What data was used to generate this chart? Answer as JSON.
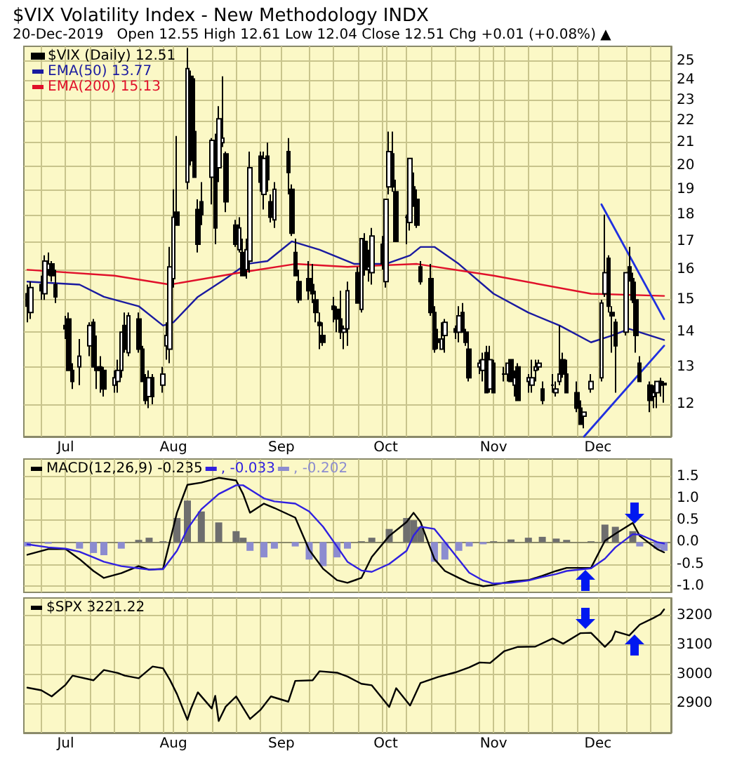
{
  "chart_data": [
    {
      "type": "candlestick",
      "title": "$VIX Volatility Index - New Methodology INDX",
      "subtitle": "20-Dec-2019   Open 12.55 High 12.61 Low 12.04 Close 12.51 Chg +0.01 (+0.08%) ▲",
      "log": "y",
      "grid": true,
      "legend": "top left",
      "xlim": [
        "2019-06-19",
        "2019-12-22"
      ],
      "xticks": [
        {
          "value": "2019-06-24",
          "label": null
        },
        {
          "value": "2019-07-01",
          "label": "Jul"
        },
        {
          "value": "2019-07-08",
          "label": null
        },
        {
          "value": "2019-07-15",
          "label": null
        },
        {
          "value": "2019-07-22",
          "label": null
        },
        {
          "value": "2019-07-29",
          "label": null
        },
        {
          "value": "2019-08-01",
          "label": "Aug"
        },
        {
          "value": "2019-08-05",
          "label": null
        },
        {
          "value": "2019-08-12",
          "label": null
        },
        {
          "value": "2019-08-19",
          "label": null
        },
        {
          "value": "2019-08-26",
          "label": null
        },
        {
          "value": "2019-09-01",
          "label": "Sep"
        },
        {
          "value": "2019-09-09",
          "label": null
        },
        {
          "value": "2019-09-16",
          "label": null
        },
        {
          "value": "2019-09-23",
          "label": null
        },
        {
          "value": "2019-09-30",
          "label": null
        },
        {
          "value": "2019-10-01",
          "label": "Oct"
        },
        {
          "value": "2019-10-07",
          "label": null
        },
        {
          "value": "2019-10-14",
          "label": null
        },
        {
          "value": "2019-10-21",
          "label": null
        },
        {
          "value": "2019-10-28",
          "label": null
        },
        {
          "value": "2019-11-01",
          "label": "Nov"
        },
        {
          "value": "2019-11-04",
          "label": null
        },
        {
          "value": "2019-11-11",
          "label": null
        },
        {
          "value": "2019-11-18",
          "label": null
        },
        {
          "value": "2019-11-25",
          "label": null
        },
        {
          "value": "2019-12-01",
          "label": "Dec"
        },
        {
          "value": "2019-12-09",
          "label": null
        },
        {
          "value": "2019-12-16",
          "label": null
        }
      ],
      "ylim": [
        11.2,
        25.8
      ],
      "yticks": [
        12,
        13,
        14,
        15,
        16,
        17,
        18,
        19,
        20,
        21,
        22,
        23,
        24,
        25
      ],
      "series": [
        {
          "type": "candlestick",
          "name": "$VIX (Daily) 12.51",
          "color": "#000000",
          "x": [
            "2019-06-20",
            "2019-06-21",
            "2019-06-24",
            "2019-06-25",
            "2019-06-26",
            "2019-06-27",
            "2019-06-28",
            "2019-07-01",
            "2019-07-02",
            "2019-07-03",
            "2019-07-05",
            "2019-07-08",
            "2019-07-09",
            "2019-07-10",
            "2019-07-11",
            "2019-07-12",
            "2019-07-15",
            "2019-07-16",
            "2019-07-17",
            "2019-07-18",
            "2019-07-19",
            "2019-07-22",
            "2019-07-23",
            "2019-07-24",
            "2019-07-25",
            "2019-07-26",
            "2019-07-29",
            "2019-07-30",
            "2019-07-31",
            "2019-08-01",
            "2019-08-02",
            "2019-08-05",
            "2019-08-06",
            "2019-08-07",
            "2019-08-08",
            "2019-08-09",
            "2019-08-12",
            "2019-08-13",
            "2019-08-14",
            "2019-08-15",
            "2019-08-16",
            "2019-08-19",
            "2019-08-20",
            "2019-08-21",
            "2019-08-22",
            "2019-08-23",
            "2019-08-26",
            "2019-08-27",
            "2019-08-28",
            "2019-08-29",
            "2019-08-30",
            "2019-09-03",
            "2019-09-04",
            "2019-09-05",
            "2019-09-06",
            "2019-09-09",
            "2019-09-10",
            "2019-09-11",
            "2019-09-12",
            "2019-09-13",
            "2019-09-16",
            "2019-09-17",
            "2019-09-18",
            "2019-09-19",
            "2019-09-20",
            "2019-09-23",
            "2019-09-24",
            "2019-09-25",
            "2019-09-26",
            "2019-09-27",
            "2019-09-30",
            "2019-10-01",
            "2019-10-02",
            "2019-10-03",
            "2019-10-04",
            "2019-10-07",
            "2019-10-08",
            "2019-10-09",
            "2019-10-10",
            "2019-10-11",
            "2019-10-14",
            "2019-10-15",
            "2019-10-16",
            "2019-10-17",
            "2019-10-18",
            "2019-10-21",
            "2019-10-22",
            "2019-10-23",
            "2019-10-24",
            "2019-10-25",
            "2019-10-28",
            "2019-10-29",
            "2019-10-30",
            "2019-10-31",
            "2019-11-01",
            "2019-11-04",
            "2019-11-05",
            "2019-11-06",
            "2019-11-07",
            "2019-11-08",
            "2019-11-11",
            "2019-11-12",
            "2019-11-13",
            "2019-11-14",
            "2019-11-15",
            "2019-11-18",
            "2019-11-19",
            "2019-11-20",
            "2019-11-21",
            "2019-11-22",
            "2019-11-25",
            "2019-11-26",
            "2019-11-27",
            "2019-11-29",
            "2019-12-02",
            "2019-12-03",
            "2019-12-04",
            "2019-12-05",
            "2019-12-06",
            "2019-12-09",
            "2019-12-10",
            "2019-12-11",
            "2019-12-12",
            "2019-12-13",
            "2019-12-16",
            "2019-12-17",
            "2019-12-18",
            "2019-12-19",
            "2019-12-20"
          ],
          "ohlc": [
            [
              15.2,
              15.5,
              14.3,
              14.8
            ],
            [
              14.6,
              15.6,
              14.4,
              15.4
            ],
            [
              15.5,
              15.8,
              15.0,
              15.3
            ],
            [
              15.2,
              16.5,
              15.0,
              16.3
            ],
            [
              16.0,
              16.6,
              15.8,
              16.2
            ],
            [
              16.2,
              16.3,
              15.6,
              15.8
            ],
            [
              15.5,
              16.0,
              14.9,
              15.1
            ],
            [
              14.2,
              14.5,
              13.8,
              14.1
            ],
            [
              14.4,
              14.6,
              12.9,
              12.9
            ],
            [
              12.9,
              13.1,
              12.4,
              12.6
            ],
            [
              13.0,
              13.8,
              12.5,
              13.3
            ],
            [
              13.6,
              14.3,
              13.3,
              14.2
            ],
            [
              14.3,
              14.4,
              13.0,
              13.0
            ],
            [
              13.0,
              13.9,
              12.4,
              12.9
            ],
            [
              13.0,
              13.3,
              12.3,
              12.9
            ],
            [
              12.9,
              13.0,
              12.2,
              12.4
            ],
            [
              12.5,
              12.9,
              12.3,
              12.7
            ],
            [
              12.6,
              13.2,
              12.3,
              12.9
            ],
            [
              12.9,
              14.0,
              12.7,
              14.0
            ],
            [
              14.2,
              14.6,
              13.4,
              13.5
            ],
            [
              13.4,
              14.6,
              13.3,
              14.5
            ],
            [
              14.4,
              14.6,
              13.4,
              13.5
            ],
            [
              13.5,
              13.6,
              12.6,
              12.6
            ],
            [
              12.7,
              12.8,
              12.0,
              12.1
            ],
            [
              12.2,
              12.9,
              11.9,
              12.7
            ],
            [
              12.7,
              12.8,
              12.0,
              12.2
            ],
            [
              12.5,
              13.0,
              12.3,
              12.8
            ],
            [
              13.6,
              14.3,
              13.2,
              13.9
            ],
            [
              13.5,
              16.8,
              13.1,
              16.1
            ],
            [
              15.7,
              19.0,
              15.4,
              17.9
            ],
            [
              18.1,
              21.3,
              17.6,
              17.6
            ],
            [
              19.3,
              25.7,
              19.0,
              24.6
            ],
            [
              24.2,
              24.5,
              20.0,
              20.2
            ],
            [
              21.5,
              24.1,
              19.5,
              19.5
            ],
            [
              18.2,
              18.6,
              16.6,
              16.9
            ],
            [
              18.5,
              19.3,
              17.6,
              18.0
            ],
            [
              19.5,
              21.2,
              18.4,
              21.1
            ],
            [
              21.1,
              21.4,
              16.9,
              17.5
            ],
            [
              19.9,
              22.7,
              19.3,
              22.1
            ],
            [
              21.0,
              24.2,
              20.8,
              21.2
            ],
            [
              20.5,
              20.6,
              18.1,
              18.5
            ],
            [
              17.6,
              17.8,
              16.8,
              16.9
            ],
            [
              16.7,
              17.9,
              16.6,
              17.5
            ],
            [
              16.6,
              17.1,
              15.8,
              15.8
            ],
            [
              16.0,
              17.1,
              15.7,
              16.7
            ],
            [
              16.3,
              20.6,
              15.9,
              19.9
            ],
            [
              20.4,
              20.6,
              18.9,
              19.3
            ],
            [
              18.8,
              20.6,
              18.2,
              20.3
            ],
            [
              20.4,
              21.0,
              18.9,
              19.4
            ],
            [
              18.5,
              18.8,
              17.7,
              17.9
            ],
            [
              17.8,
              19.3,
              17.5,
              19.0
            ],
            [
              20.6,
              21.2,
              18.8,
              19.7
            ],
            [
              19.0,
              19.2,
              17.2,
              17.3
            ],
            [
              16.6,
              17.1,
              15.8,
              15.8
            ],
            [
              15.6,
              16.0,
              14.9,
              15.0
            ],
            [
              15.7,
              16.3,
              15.0,
              15.3
            ],
            [
              15.5,
              16.2,
              14.9,
              15.2
            ],
            [
              15.0,
              15.3,
              14.3,
              14.6
            ],
            [
              14.3,
              14.6,
              13.5,
              14.2
            ],
            [
              13.9,
              14.3,
              13.6,
              13.7
            ],
            [
              14.8,
              15.1,
              14.3,
              14.7
            ],
            [
              14.7,
              14.8,
              14.0,
              14.4
            ],
            [
              14.4,
              15.3,
              13.8,
              14.0
            ],
            [
              14.0,
              14.2,
              13.5,
              14.1
            ],
            [
              14.1,
              15.6,
              13.6,
              15.3
            ],
            [
              15.9,
              16.1,
              14.9,
              14.9
            ],
            [
              14.7,
              17.1,
              14.6,
              17.1
            ],
            [
              17.0,
              17.3,
              15.8,
              16.0
            ],
            [
              16.0,
              16.7,
              15.6,
              16.1
            ],
            [
              15.9,
              17.5,
              15.5,
              17.2
            ],
            [
              16.9,
              17.2,
              16.0,
              16.2
            ],
            [
              15.6,
              18.6,
              15.4,
              18.6
            ],
            [
              19.1,
              21.5,
              18.8,
              20.6
            ],
            [
              20.5,
              21.5,
              18.9,
              19.1
            ],
            [
              18.9,
              19.4,
              17.0,
              17.0
            ],
            [
              17.9,
              18.0,
              16.9,
              17.9
            ],
            [
              17.7,
              20.3,
              17.4,
              20.3
            ],
            [
              19.1,
              19.7,
              18.3,
              18.6
            ],
            [
              18.6,
              19.0,
              17.5,
              17.6
            ],
            [
              16.1,
              16.3,
              15.5,
              15.6
            ],
            [
              15.7,
              16.2,
              14.5,
              14.6
            ],
            [
              14.6,
              14.8,
              13.4,
              13.5
            ],
            [
              13.8,
              14.1,
              13.5,
              13.7
            ],
            [
              13.5,
              14.3,
              13.5,
              13.8
            ],
            [
              13.9,
              14.4,
              13.4,
              14.3
            ],
            [
              14.1,
              14.2,
              13.8,
              14.0
            ],
            [
              14.0,
              14.8,
              13.7,
              14.5
            ],
            [
              14.6,
              14.9,
              14.0,
              14.0
            ],
            [
              14.0,
              14.1,
              13.6,
              13.7
            ],
            [
              13.5,
              13.8,
              12.6,
              12.7
            ],
            [
              13.0,
              13.2,
              12.8,
              13.1
            ],
            [
              12.9,
              13.4,
              12.6,
              13.2
            ],
            [
              13.4,
              13.6,
              12.3,
              12.3
            ],
            [
              12.4,
              13.6,
              12.3,
              13.2
            ],
            [
              13.1,
              13.2,
              12.3,
              12.3
            ],
            [
              12.8,
              13.0,
              12.6,
              12.8
            ],
            [
              12.8,
              13.1,
              12.6,
              13.1
            ],
            [
              13.2,
              13.2,
              12.6,
              12.6
            ],
            [
              12.5,
              12.9,
              12.2,
              12.7
            ],
            [
              13.0,
              13.1,
              12.1,
              12.1
            ],
            [
              12.6,
              12.8,
              12.3,
              12.7
            ],
            [
              12.5,
              13.2,
              12.3,
              12.7
            ],
            [
              12.9,
              13.2,
              12.6,
              13.0
            ],
            [
              13.0,
              13.2,
              12.9,
              13.1
            ],
            [
              12.4,
              12.6,
              12.0,
              12.1
            ],
            [
              12.5,
              12.8,
              12.3,
              12.5
            ],
            [
              12.3,
              12.6,
              12.2,
              12.4
            ],
            [
              12.6,
              14.2,
              12.5,
              12.8
            ],
            [
              13.2,
              13.4,
              12.7,
              12.8
            ],
            [
              12.8,
              13.2,
              12.3,
              12.3
            ],
            [
              12.3,
              12.6,
              11.8,
              11.9
            ],
            [
              11.9,
              12.1,
              11.5,
              11.5
            ],
            [
              11.7,
              11.8,
              11.4,
              11.8
            ],
            [
              12.4,
              12.8,
              12.3,
              12.6
            ],
            [
              12.7,
              15.0,
              12.6,
              14.9
            ],
            [
              15.2,
              18.0,
              15.1,
              15.9
            ],
            [
              16.4,
              16.5,
              14.6,
              14.8
            ],
            [
              14.6,
              14.8,
              13.4,
              14.5
            ],
            [
              14.3,
              14.4,
              12.3,
              13.6
            ],
            [
              14.0,
              15.9,
              13.9,
              15.9
            ],
            [
              16.1,
              16.8,
              15.6,
              15.7
            ],
            [
              15.7,
              15.9,
              14.9,
              15.0
            ],
            [
              15.0,
              15.6,
              13.4,
              13.9
            ],
            [
              13.1,
              13.3,
              12.6,
              12.6
            ],
            [
              12.5,
              12.6,
              11.8,
              12.1
            ],
            [
              12.2,
              12.5,
              11.9,
              12.3
            ],
            [
              12.3,
              12.6,
              11.9,
              12.6
            ],
            [
              12.6,
              12.7,
              12.2,
              12.5
            ],
            [
              12.55,
              12.61,
              12.04,
              12.51
            ]
          ]
        },
        {
          "type": "line",
          "name": "EMA(50) 13.77",
          "color": "#1a1aa0",
          "x": [
            "2019-06-20",
            "2019-07-05",
            "2019-07-12",
            "2019-07-22",
            "2019-07-29",
            "2019-08-01",
            "2019-08-08",
            "2019-08-16",
            "2019-08-22",
            "2019-08-28",
            "2019-09-04",
            "2019-09-12",
            "2019-09-22",
            "2019-10-01",
            "2019-10-08",
            "2019-10-11",
            "2019-10-15",
            "2019-10-22",
            "2019-11-01",
            "2019-11-11",
            "2019-11-20",
            "2019-11-29",
            "2019-12-05",
            "2019-12-10",
            "2019-12-20"
          ],
          "values": [
            15.6,
            15.5,
            15.1,
            14.8,
            14.2,
            14.3,
            15.1,
            15.7,
            16.2,
            16.3,
            17.0,
            16.7,
            16.2,
            16.2,
            16.5,
            16.8,
            16.8,
            16.2,
            15.2,
            14.6,
            14.2,
            13.7,
            13.9,
            14.1,
            13.77
          ]
        },
        {
          "type": "line",
          "name": "EMA(200) 15.13",
          "color": "#e0102a",
          "x": [
            "2019-06-20",
            "2019-07-15",
            "2019-07-31",
            "2019-08-20",
            "2019-09-05",
            "2019-09-20",
            "2019-10-10",
            "2019-11-01",
            "2019-11-29",
            "2019-12-20"
          ],
          "values": [
            16.0,
            15.8,
            15.5,
            15.9,
            16.2,
            16.1,
            16.2,
            15.8,
            15.2,
            15.13
          ]
        },
        {
          "type": "line",
          "color": "#2030e0",
          "x": [
            "2019-12-02",
            "2019-12-20"
          ],
          "values": [
            18.4,
            14.4
          ]
        },
        {
          "type": "line",
          "color": "#2030e0",
          "x": [
            "2019-11-27",
            "2019-12-20"
          ],
          "values": [
            11.2,
            13.6
          ]
        }
      ]
    },
    {
      "type": "line",
      "grid": true,
      "legend": "top left",
      "tick_labels": "y",
      "xlim": [
        "2019-06-19",
        "2019-12-22"
      ],
      "xticks": [
        {
          "value": "2019-06-24",
          "label": null
        },
        {
          "value": "2019-07-01",
          "label": null
        },
        {
          "value": "2019-07-08",
          "label": null
        },
        {
          "value": "2019-07-15",
          "label": null
        },
        {
          "value": "2019-07-22",
          "label": null
        },
        {
          "value": "2019-07-29",
          "label": null
        },
        {
          "value": "2019-08-01",
          "label": null
        },
        {
          "value": "2019-08-05",
          "label": null
        },
        {
          "value": "2019-08-12",
          "label": null
        },
        {
          "value": "2019-08-19",
          "label": null
        },
        {
          "value": "2019-08-26",
          "label": null
        },
        {
          "value": "2019-09-01",
          "label": null
        },
        {
          "value": "2019-09-09",
          "label": null
        },
        {
          "value": "2019-09-16",
          "label": null
        },
        {
          "value": "2019-09-23",
          "label": null
        },
        {
          "value": "2019-09-30",
          "label": null
        },
        {
          "value": "2019-10-01",
          "label": null
        },
        {
          "value": "2019-10-07",
          "label": null
        },
        {
          "value": "2019-10-14",
          "label": null
        },
        {
          "value": "2019-10-21",
          "label": null
        },
        {
          "value": "2019-10-28",
          "label": null
        },
        {
          "value": "2019-11-01",
          "label": null
        },
        {
          "value": "2019-11-04",
          "label": null
        },
        {
          "value": "2019-11-11",
          "label": null
        },
        {
          "value": "2019-11-18",
          "label": null
        },
        {
          "value": "2019-11-25",
          "label": null
        },
        {
          "value": "2019-12-01",
          "label": null
        },
        {
          "value": "2019-12-09",
          "label": null
        },
        {
          "value": "2019-12-16",
          "label": null
        }
      ],
      "ylim": [
        -1.15,
        1.9
      ],
      "yticks": [
        {
          "value": -1,
          "label": "-1.0"
        },
        {
          "value": -0.5,
          "label": "-0.5"
        },
        {
          "value": 0,
          "label": "0.0"
        },
        {
          "value": 0.5,
          "label": "0.5"
        },
        {
          "value": 1,
          "label": "1.0"
        },
        {
          "value": 1.5,
          "label": "1.5"
        }
      ],
      "series": [
        {
          "type": "bar",
          "name": ", -0.202",
          "color": "#8c8cd0",
          "x": [
            "2019-06-20",
            "2019-06-26",
            "2019-07-01",
            "2019-07-05",
            "2019-07-09",
            "2019-07-12",
            "2019-07-17",
            "2019-07-22",
            "2019-07-25",
            "2019-07-29",
            "2019-08-02",
            "2019-08-05",
            "2019-08-09",
            "2019-08-14",
            "2019-08-19",
            "2019-08-21",
            "2019-08-23",
            "2019-08-27",
            "2019-08-30",
            "2019-09-05",
            "2019-09-09",
            "2019-09-13",
            "2019-09-17",
            "2019-09-20",
            "2019-09-24",
            "2019-09-27",
            "2019-10-02",
            "2019-10-07",
            "2019-10-09",
            "2019-10-11",
            "2019-10-15",
            "2019-10-18",
            "2019-10-22",
            "2019-10-25",
            "2019-10-29",
            "2019-11-01",
            "2019-11-06",
            "2019-11-11",
            "2019-11-15",
            "2019-11-19",
            "2019-11-22",
            "2019-11-29",
            "2019-12-03",
            "2019-12-06",
            "2019-12-11",
            "2019-12-13",
            "2019-12-18",
            "2019-12-20"
          ],
          "values": [
            -0.1,
            -0.04,
            0,
            -0.15,
            -0.25,
            -0.3,
            -0.15,
            0.05,
            0.1,
            0.02,
            0.55,
            0.95,
            0.7,
            0.45,
            0.25,
            0.1,
            -0.2,
            -0.35,
            -0.15,
            -0.1,
            -0.4,
            -0.55,
            -0.35,
            -0.15,
            0.02,
            0.1,
            0.3,
            0.55,
            0.5,
            0.35,
            -0.45,
            -0.4,
            -0.2,
            -0.1,
            -0.05,
            0.02,
            0.06,
            0.1,
            0.12,
            0.08,
            0.05,
            0.02,
            0.4,
            0.35,
            0.25,
            -0.1,
            -0.15,
            -0.2
          ],
          "colors": [
            "#8c8cd0",
            "#8c8cd0",
            "#8c8cd0",
            "#8c8cd0",
            "#8c8cd0",
            "#8c8cd0",
            "#8c8cd0",
            "#6e6e6e",
            "#6e6e6e",
            "#6e6e6e",
            "#6e6e6e",
            "#6e6e6e",
            "#6e6e6e",
            "#6e6e6e",
            "#6e6e6e",
            "#6e6e6e",
            "#8c8cd0",
            "#8c8cd0",
            "#8c8cd0",
            "#8c8cd0",
            "#8c8cd0",
            "#8c8cd0",
            "#8c8cd0",
            "#8c8cd0",
            "#6e6e6e",
            "#6e6e6e",
            "#6e6e6e",
            "#6e6e6e",
            "#6e6e6e",
            "#6e6e6e",
            "#8c8cd0",
            "#8c8cd0",
            "#8c8cd0",
            "#8c8cd0",
            "#8c8cd0",
            "#6e6e6e",
            "#6e6e6e",
            "#6e6e6e",
            "#6e6e6e",
            "#6e6e6e",
            "#6e6e6e",
            "#6e6e6e",
            "#6e6e6e",
            "#6e6e6e",
            "#6e6e6e",
            "#8c8cd0",
            "#8c8cd0",
            "#8c8cd0"
          ]
        },
        {
          "type": "line",
          "name": "MACD(12,26,9) -0.235",
          "color": "#000000",
          "x": [
            "2019-06-20",
            "2019-06-26",
            "2019-07-01",
            "2019-07-05",
            "2019-07-09",
            "2019-07-12",
            "2019-07-17",
            "2019-07-22",
            "2019-07-25",
            "2019-07-29",
            "2019-08-02",
            "2019-08-05",
            "2019-08-09",
            "2019-08-14",
            "2019-08-19",
            "2019-08-21",
            "2019-08-23",
            "2019-08-27",
            "2019-08-30",
            "2019-09-05",
            "2019-09-09",
            "2019-09-13",
            "2019-09-17",
            "2019-09-20",
            "2019-09-24",
            "2019-09-27",
            "2019-10-02",
            "2019-10-07",
            "2019-10-09",
            "2019-10-11",
            "2019-10-15",
            "2019-10-18",
            "2019-10-22",
            "2019-10-25",
            "2019-10-29",
            "2019-11-01",
            "2019-11-06",
            "2019-11-11",
            "2019-11-15",
            "2019-11-19",
            "2019-11-22",
            "2019-11-29",
            "2019-12-03",
            "2019-12-06",
            "2019-12-11",
            "2019-12-13",
            "2019-12-18",
            "2019-12-20"
          ],
          "values": [
            -0.29,
            -0.16,
            -0.16,
            -0.39,
            -0.66,
            -0.82,
            -0.71,
            -0.55,
            -0.63,
            -0.61,
            0.67,
            1.31,
            1.36,
            1.47,
            1.41,
            1.1,
            0.67,
            0.88,
            0.78,
            0.56,
            -0.18,
            -0.61,
            -0.87,
            -0.93,
            -0.82,
            -0.34,
            0.14,
            0.46,
            0.67,
            0.46,
            -0.39,
            -0.66,
            -0.82,
            -0.93,
            -1.01,
            -0.98,
            -0.9,
            -0.87,
            -0.77,
            -0.66,
            -0.59,
            -0.59,
            0.03,
            0.19,
            0.44,
            0.14,
            -0.16,
            -0.235
          ]
        },
        {
          "type": "line",
          "name": ", -0.033",
          "color": "#3020e0",
          "x": [
            "2019-06-20",
            "2019-06-26",
            "2019-07-01",
            "2019-07-05",
            "2019-07-09",
            "2019-07-12",
            "2019-07-17",
            "2019-07-22",
            "2019-07-25",
            "2019-07-29",
            "2019-08-02",
            "2019-08-05",
            "2019-08-09",
            "2019-08-14",
            "2019-08-19",
            "2019-08-21",
            "2019-08-23",
            "2019-08-27",
            "2019-08-30",
            "2019-09-05",
            "2019-09-09",
            "2019-09-13",
            "2019-09-17",
            "2019-09-20",
            "2019-09-24",
            "2019-09-27",
            "2019-10-02",
            "2019-10-07",
            "2019-10-09",
            "2019-10-11",
            "2019-10-15",
            "2019-10-18",
            "2019-10-22",
            "2019-10-25",
            "2019-10-29",
            "2019-11-01",
            "2019-11-06",
            "2019-11-11",
            "2019-11-15",
            "2019-11-19",
            "2019-11-22",
            "2019-11-29",
            "2019-12-03",
            "2019-12-06",
            "2019-12-11",
            "2019-12-13",
            "2019-12-18",
            "2019-12-20"
          ],
          "values": [
            -0.05,
            -0.12,
            -0.15,
            -0.22,
            -0.35,
            -0.45,
            -0.55,
            -0.6,
            -0.63,
            -0.62,
            -0.2,
            0.3,
            0.75,
            1.1,
            1.3,
            1.3,
            1.2,
            1.0,
            0.93,
            0.88,
            0.7,
            0.35,
            -0.1,
            -0.45,
            -0.65,
            -0.68,
            -0.5,
            -0.2,
            0.15,
            0.35,
            0.3,
            0.0,
            -0.4,
            -0.7,
            -0.88,
            -0.95,
            -0.93,
            -0.88,
            -0.8,
            -0.73,
            -0.66,
            -0.6,
            -0.38,
            -0.12,
            0.18,
            0.17,
            0.0,
            -0.033
          ]
        }
      ]
    },
    {
      "type": "line",
      "grid": true,
      "legend": "top left",
      "xlim": [
        "2019-06-19",
        "2019-12-22"
      ],
      "xticks": [
        {
          "value": "2019-06-24",
          "label": null
        },
        {
          "value": "2019-07-01",
          "label": "Jul"
        },
        {
          "value": "2019-07-08",
          "label": null
        },
        {
          "value": "2019-07-15",
          "label": null
        },
        {
          "value": "2019-07-22",
          "label": null
        },
        {
          "value": "2019-07-29",
          "label": null
        },
        {
          "value": "2019-08-01",
          "label": "Aug"
        },
        {
          "value": "2019-08-05",
          "label": null
        },
        {
          "value": "2019-08-12",
          "label": null
        },
        {
          "value": "2019-08-19",
          "label": null
        },
        {
          "value": "2019-08-26",
          "label": null
        },
        {
          "value": "2019-09-01",
          "label": "Sep"
        },
        {
          "value": "2019-09-09",
          "label": null
        },
        {
          "value": "2019-09-16",
          "label": null
        },
        {
          "value": "2019-09-23",
          "label": null
        },
        {
          "value": "2019-09-30",
          "label": null
        },
        {
          "value": "2019-10-01",
          "label": "Oct"
        },
        {
          "value": "2019-10-07",
          "label": null
        },
        {
          "value": "2019-10-14",
          "label": null
        },
        {
          "value": "2019-10-21",
          "label": null
        },
        {
          "value": "2019-10-28",
          "label": null
        },
        {
          "value": "2019-11-01",
          "label": "Nov"
        },
        {
          "value": "2019-11-04",
          "label": null
        },
        {
          "value": "2019-11-11",
          "label": null
        },
        {
          "value": "2019-11-18",
          "label": null
        },
        {
          "value": "2019-11-25",
          "label": null
        },
        {
          "value": "2019-12-01",
          "label": "Dec"
        },
        {
          "value": "2019-12-09",
          "label": null
        },
        {
          "value": "2019-12-16",
          "label": null
        }
      ],
      "ylim": [
        2800,
        3260
      ],
      "yticks": [
        2900,
        3000,
        3100,
        3200
      ],
      "series": [
        {
          "type": "line",
          "name": "$SPX 3221.22",
          "color": "#000000",
          "x": [
            "2019-06-20",
            "2019-06-24",
            "2019-06-27",
            "2019-07-01",
            "2019-07-03",
            "2019-07-09",
            "2019-07-12",
            "2019-07-16",
            "2019-07-18",
            "2019-07-22",
            "2019-07-26",
            "2019-07-29",
            "2019-07-31",
            "2019-08-02",
            "2019-08-05",
            "2019-08-06",
            "2019-08-08",
            "2019-08-12",
            "2019-08-13",
            "2019-08-14",
            "2019-08-16",
            "2019-08-19",
            "2019-08-23",
            "2019-08-26",
            "2019-08-29",
            "2019-09-03",
            "2019-09-05",
            "2019-09-10",
            "2019-09-12",
            "2019-09-17",
            "2019-09-20",
            "2019-09-24",
            "2019-09-27",
            "2019-10-02",
            "2019-10-04",
            "2019-10-08",
            "2019-10-11",
            "2019-10-16",
            "2019-10-21",
            "2019-10-25",
            "2019-10-28",
            "2019-10-31",
            "2019-11-04",
            "2019-11-08",
            "2019-11-13",
            "2019-11-18",
            "2019-11-21",
            "2019-11-26",
            "2019-11-29",
            "2019-12-03",
            "2019-12-05",
            "2019-12-06",
            "2019-12-10",
            "2019-12-13",
            "2019-12-17",
            "2019-12-19",
            "2019-12-20"
          ],
          "values": [
            2954,
            2945,
            2924,
            2964,
            2995,
            2979,
            3014,
            3004,
            2995,
            2986,
            3026,
            3020,
            2980,
            2932,
            2844,
            2881,
            2938,
            2883,
            2926,
            2840,
            2889,
            2924,
            2847,
            2878,
            2924,
            2906,
            2977,
            2979,
            3010,
            3005,
            2992,
            2967,
            2962,
            2888,
            2952,
            2893,
            2970,
            2990,
            3006,
            3023,
            3040,
            3038,
            3078,
            3093,
            3094,
            3122,
            3104,
            3140,
            3141,
            3093,
            3117,
            3146,
            3132,
            3169,
            3192,
            3205,
            3221.22
          ]
        }
      ]
    }
  ]
}
